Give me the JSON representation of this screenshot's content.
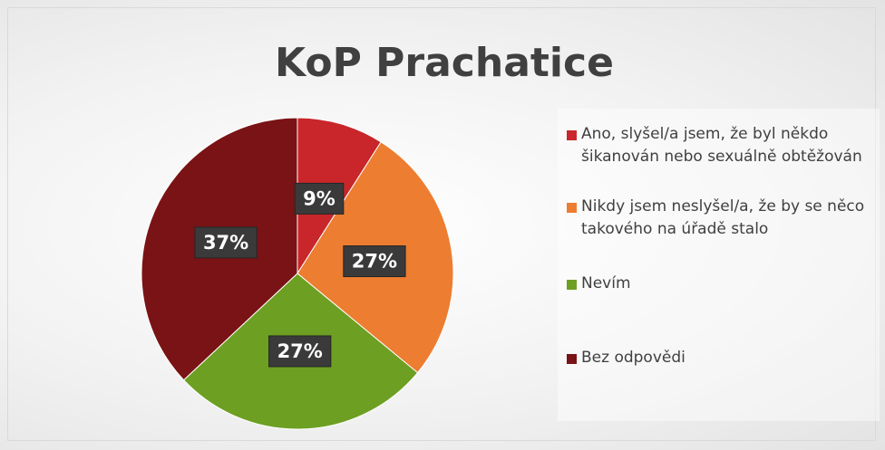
{
  "chart_data": {
    "type": "pie",
    "title": "KoP Prachatice",
    "categories": [
      "Ano, slyšel/a jsem, že byl někdo šikanován nebo sexuálně obtěžován",
      "Nikdy jsem neslyšel/a, že by se něco takového na úřadě stalo",
      "Nevím",
      "Bez odpovědi"
    ],
    "values": [
      9,
      27,
      27,
      37
    ],
    "value_labels": [
      "9%",
      "27%",
      "27%",
      "37%"
    ],
    "colors": [
      "#c8262a",
      "#ed7d31",
      "#6d9f22",
      "#7a1315"
    ],
    "legend": "right"
  }
}
